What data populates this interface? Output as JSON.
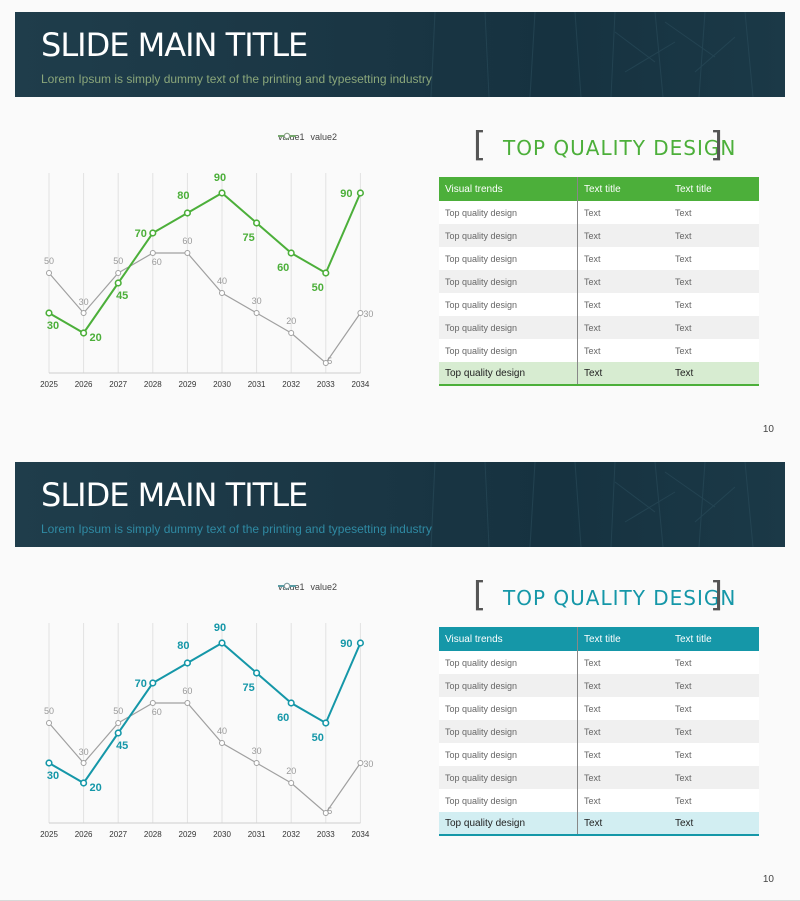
{
  "slides": [
    {
      "title": "SLIDE MAIN TITLE",
      "subtitle": "Lorem Ipsum is simply dummy text of the printing and typesetting industry",
      "accent": "#4caf3a",
      "subtitle_color": "#8aa67a",
      "footer_bg": "#d7ecd1",
      "table_heading": "TOP QUALITY DESIGN",
      "table": {
        "headers": [
          "Visual trends",
          "Text title",
          "Text title"
        ],
        "rows": [
          [
            "Top quality design",
            "Text",
            "Text"
          ],
          [
            "Top quality design",
            "Text",
            "Text"
          ],
          [
            "Top quality design",
            "Text",
            "Text"
          ],
          [
            "Top quality design",
            "Text",
            "Text"
          ],
          [
            "Top quality design",
            "Text",
            "Text"
          ],
          [
            "Top quality design",
            "Text",
            "Text"
          ],
          [
            "Top quality design",
            "Text",
            "Text"
          ]
        ],
        "footer": [
          "Top quality design",
          "Text",
          "Text"
        ]
      },
      "page_number": "10"
    },
    {
      "title": "SLIDE MAIN TITLE",
      "subtitle": "Lorem Ipsum is simply dummy text of the printing and typesetting industry",
      "accent": "#1597a8",
      "subtitle_color": "#2f8aa3",
      "footer_bg": "#d2eef2",
      "table_heading": "TOP QUALITY DESIGN",
      "table": {
        "headers": [
          "Visual trends",
          "Text title",
          "Text title"
        ],
        "rows": [
          [
            "Top quality design",
            "Text",
            "Text"
          ],
          [
            "Top quality design",
            "Text",
            "Text"
          ],
          [
            "Top quality design",
            "Text",
            "Text"
          ],
          [
            "Top quality design",
            "Text",
            "Text"
          ],
          [
            "Top quality design",
            "Text",
            "Text"
          ],
          [
            "Top quality design",
            "Text",
            "Text"
          ],
          [
            "Top quality design",
            "Text",
            "Text"
          ]
        ],
        "footer": [
          "Top quality design",
          "Text",
          "Text"
        ]
      },
      "page_number": "10"
    }
  ],
  "chart_data": [
    {
      "type": "line",
      "x": [
        "2025",
        "2026",
        "2027",
        "2028",
        "2029",
        "2030",
        "2031",
        "2032",
        "2033",
        "2034"
      ],
      "series": [
        {
          "name": "value1",
          "values": [
            30,
            20,
            45,
            70,
            80,
            90,
            75,
            60,
            50,
            90
          ],
          "color": "#4caf3a"
        },
        {
          "name": "value2",
          "values": [
            50,
            30,
            50,
            60,
            60,
            40,
            30,
            20,
            5,
            30
          ],
          "color": "#a0a0a0"
        }
      ],
      "legend": "top-right",
      "grid": "vertical"
    },
    {
      "type": "line",
      "x": [
        "2025",
        "2026",
        "2027",
        "2028",
        "2029",
        "2030",
        "2031",
        "2032",
        "2033",
        "2034"
      ],
      "series": [
        {
          "name": "value1",
          "values": [
            30,
            20,
            45,
            70,
            80,
            90,
            75,
            60,
            50,
            90
          ],
          "color": "#1597a8"
        },
        {
          "name": "value2",
          "values": [
            50,
            30,
            50,
            60,
            60,
            40,
            30,
            20,
            5,
            30
          ],
          "color": "#a0a0a0"
        }
      ],
      "legend": "top-right",
      "grid": "vertical"
    }
  ]
}
